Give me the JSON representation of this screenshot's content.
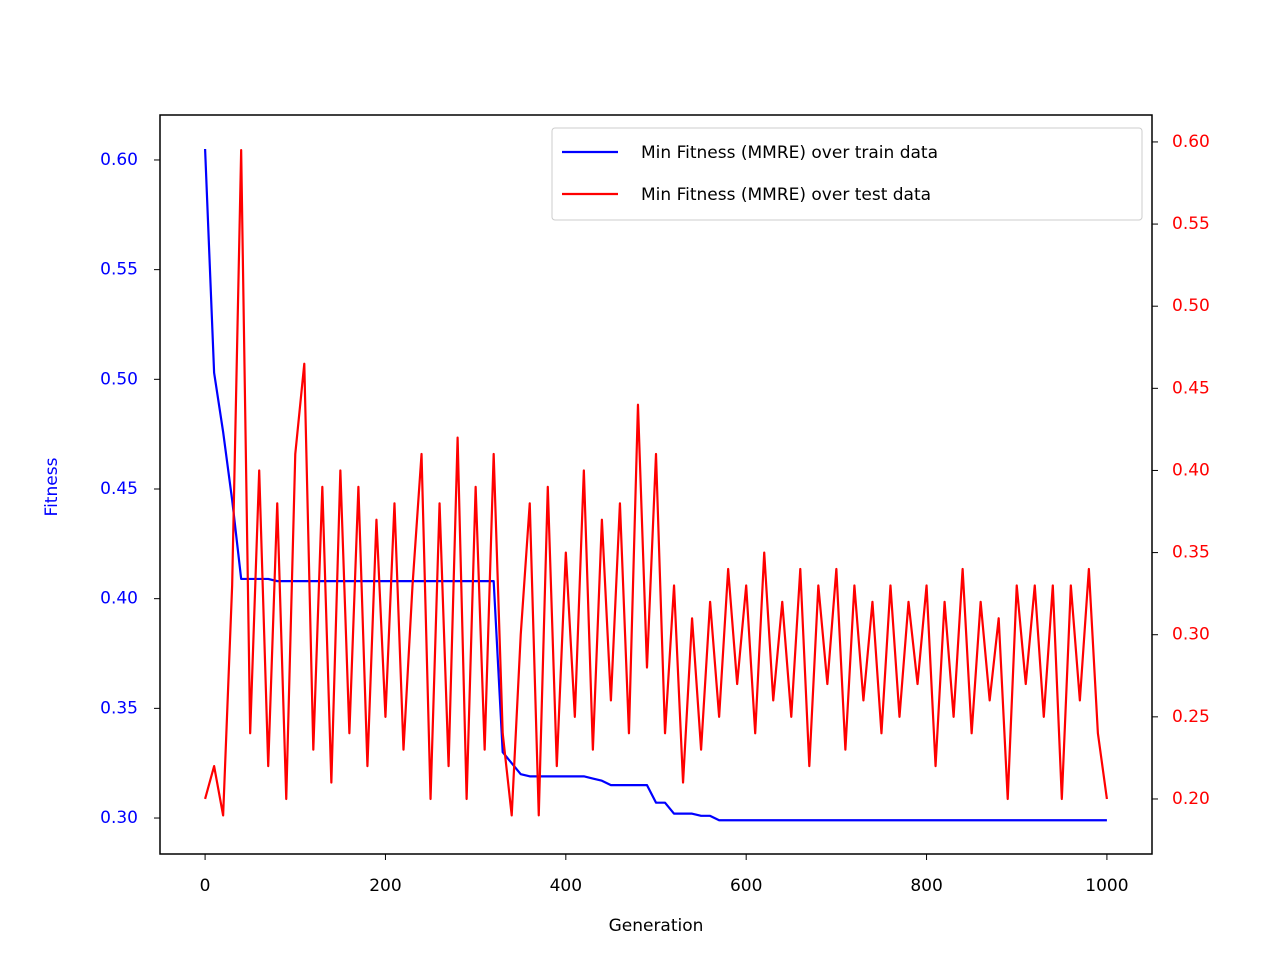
{
  "chart_data": {
    "type": "line",
    "x_label": "Generation",
    "y_label": "Fitness",
    "x": [
      0,
      10,
      20,
      30,
      40,
      50,
      60,
      70,
      80,
      90,
      100,
      110,
      120,
      130,
      140,
      150,
      160,
      170,
      180,
      190,
      200,
      210,
      220,
      230,
      240,
      250,
      260,
      270,
      280,
      290,
      300,
      310,
      320,
      330,
      340,
      350,
      360,
      370,
      380,
      390,
      400,
      410,
      420,
      430,
      440,
      450,
      460,
      470,
      480,
      490,
      500,
      510,
      520,
      530,
      540,
      550,
      560,
      570,
      580,
      590,
      600,
      610,
      620,
      630,
      640,
      650,
      660,
      670,
      680,
      690,
      700,
      710,
      720,
      730,
      740,
      750,
      760,
      770,
      780,
      790,
      800,
      810,
      820,
      830,
      840,
      850,
      860,
      870,
      880,
      890,
      900,
      910,
      920,
      930,
      940,
      950,
      960,
      970,
      980,
      990,
      1000
    ],
    "series": [
      {
        "name": "Min Fitness (MMRE) over train data",
        "color": "#0000ff",
        "axis": "y",
        "values": [
          0.605,
          0.503,
          0.476,
          0.445,
          0.409,
          0.409,
          0.409,
          0.409,
          0.408,
          0.408,
          0.408,
          0.408,
          0.408,
          0.408,
          0.408,
          0.408,
          0.408,
          0.408,
          0.408,
          0.408,
          0.408,
          0.408,
          0.408,
          0.408,
          0.408,
          0.408,
          0.408,
          0.408,
          0.408,
          0.408,
          0.408,
          0.408,
          0.408,
          0.33,
          0.325,
          0.32,
          0.319,
          0.319,
          0.319,
          0.319,
          0.319,
          0.319,
          0.319,
          0.318,
          0.317,
          0.315,
          0.315,
          0.315,
          0.315,
          0.315,
          0.307,
          0.307,
          0.302,
          0.302,
          0.302,
          0.301,
          0.301,
          0.299,
          0.299,
          0.299,
          0.299,
          0.299,
          0.299,
          0.299,
          0.299,
          0.299,
          0.299,
          0.299,
          0.299,
          0.299,
          0.299,
          0.299,
          0.299,
          0.299,
          0.299,
          0.299,
          0.299,
          0.299,
          0.299,
          0.299,
          0.299,
          0.299,
          0.299,
          0.299,
          0.299,
          0.299,
          0.299,
          0.299,
          0.299,
          0.299,
          0.299,
          0.299,
          0.299,
          0.299,
          0.299,
          0.299,
          0.299,
          0.299,
          0.299,
          0.299,
          0.299
        ]
      },
      {
        "name": "Min Fitness (MMRE) over test data",
        "color": "#ff0000",
        "axis": "y2",
        "values": [
          0.2,
          0.22,
          0.19,
          0.33,
          0.595,
          0.24,
          0.4,
          0.22,
          0.38,
          0.2,
          0.41,
          0.465,
          0.23,
          0.39,
          0.21,
          0.4,
          0.24,
          0.39,
          0.22,
          0.37,
          0.25,
          0.38,
          0.23,
          0.33,
          0.41,
          0.2,
          0.38,
          0.22,
          0.42,
          0.2,
          0.39,
          0.23,
          0.41,
          0.24,
          0.19,
          0.3,
          0.38,
          0.19,
          0.39,
          0.22,
          0.35,
          0.25,
          0.4,
          0.23,
          0.37,
          0.26,
          0.38,
          0.24,
          0.44,
          0.28,
          0.41,
          0.24,
          0.33,
          0.21,
          0.31,
          0.23,
          0.32,
          0.25,
          0.34,
          0.27,
          0.33,
          0.24,
          0.35,
          0.26,
          0.32,
          0.25,
          0.34,
          0.22,
          0.33,
          0.27,
          0.34,
          0.23,
          0.33,
          0.26,
          0.32,
          0.24,
          0.33,
          0.25,
          0.32,
          0.27,
          0.33,
          0.22,
          0.32,
          0.25,
          0.34,
          0.24,
          0.32,
          0.26,
          0.31,
          0.2,
          0.33,
          0.27,
          0.33,
          0.25,
          0.33,
          0.2,
          0.33,
          0.26,
          0.34,
          0.24,
          0.2
        ]
      }
    ],
    "xlim": [
      -50,
      1050
    ],
    "xticks": [
      0,
      200,
      400,
      600,
      800,
      1000
    ],
    "ylim": [
      0.2836,
      0.6205
    ],
    "yticks": [
      {
        "value": 0.3,
        "label": "0.30"
      },
      0.35,
      {
        "value": 0.4,
        "label": "0.40"
      },
      0.45,
      {
        "value": 0.5,
        "label": "0.50"
      },
      0.55,
      {
        "value": 0.6,
        "label": "0.60"
      }
    ],
    "y_color": "#0000ff",
    "y2lim": [
      0.1665,
      0.6164
    ],
    "y2ticks": [
      {
        "value": 0.2,
        "label": "0.20"
      },
      0.25,
      {
        "value": 0.3,
        "label": "0.30"
      },
      0.35,
      {
        "value": 0.4,
        "label": "0.40"
      },
      0.45,
      {
        "value": 0.5,
        "label": "0.50"
      },
      0.55,
      {
        "value": 0.6,
        "label": "0.60"
      }
    ],
    "y2_color": "#ff0000",
    "legend": "upper right"
  }
}
